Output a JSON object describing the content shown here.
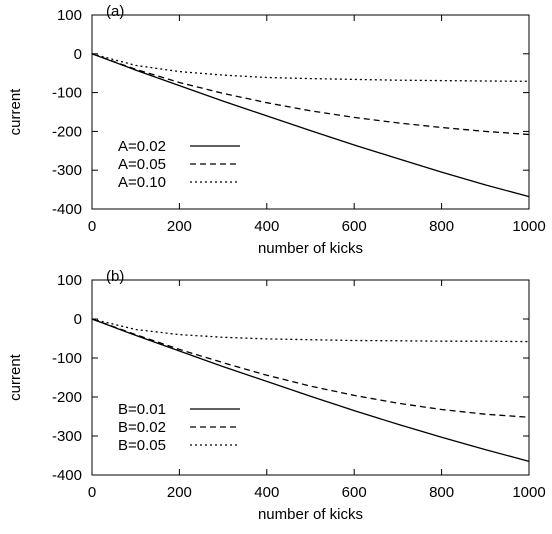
{
  "chart_data": [
    {
      "type": "line",
      "panel_label": "(a)",
      "xlabel": "number of kicks",
      "ylabel": "current",
      "xlim": [
        0,
        1000
      ],
      "ylim": [
        -400,
        100
      ],
      "xticks": [
        0,
        200,
        400,
        600,
        800,
        1000
      ],
      "yticks": [
        100,
        0,
        -100,
        -200,
        -300,
        -400
      ],
      "tick_labels_x": [
        "0",
        "200",
        "400",
        "600",
        "800",
        "1000"
      ],
      "tick_labels_y": [
        "100",
        "0",
        "-100",
        "-200",
        "-300",
        "-400"
      ],
      "legend_position": "bottom-left",
      "grid": false,
      "series": [
        {
          "name": "A=0.02",
          "style": "solid",
          "x": [
            0,
            100,
            200,
            300,
            400,
            500,
            600,
            700,
            800,
            900,
            1000
          ],
          "y": [
            0,
            -42,
            -82,
            -122,
            -160,
            -198,
            -235,
            -270,
            -305,
            -338,
            -368
          ]
        },
        {
          "name": "A=0.05",
          "style": "dashed",
          "x": [
            0,
            100,
            200,
            300,
            400,
            500,
            600,
            700,
            800,
            900,
            1000
          ],
          "y": [
            0,
            -40,
            -74,
            -102,
            -126,
            -147,
            -164,
            -178,
            -190,
            -200,
            -208
          ]
        },
        {
          "name": "A=0.10",
          "style": "dotted",
          "x": [
            0,
            100,
            200,
            300,
            400,
            500,
            600,
            700,
            800,
            900,
            1000
          ],
          "y": [
            0,
            -30,
            -46,
            -55,
            -61,
            -64,
            -66,
            -68,
            -69,
            -70,
            -71
          ]
        }
      ]
    },
    {
      "type": "line",
      "panel_label": "(b)",
      "xlabel": "number of kicks",
      "ylabel": "current",
      "xlim": [
        0,
        1000
      ],
      "ylim": [
        -400,
        100
      ],
      "xticks": [
        0,
        200,
        400,
        600,
        800,
        1000
      ],
      "yticks": [
        100,
        0,
        -100,
        -200,
        -300,
        -400
      ],
      "tick_labels_x": [
        "0",
        "200",
        "400",
        "600",
        "800",
        "1000"
      ],
      "tick_labels_y": [
        "100",
        "0",
        "-100",
        "-200",
        "-300",
        "-400"
      ],
      "legend_position": "bottom-left",
      "grid": false,
      "series": [
        {
          "name": "B=0.01",
          "style": "solid",
          "x": [
            0,
            100,
            200,
            300,
            400,
            500,
            600,
            700,
            800,
            900,
            1000
          ],
          "y": [
            0,
            -42,
            -82,
            -122,
            -160,
            -198,
            -235,
            -270,
            -303,
            -335,
            -365
          ]
        },
        {
          "name": "B=0.02",
          "style": "dashed",
          "x": [
            0,
            100,
            200,
            300,
            400,
            500,
            600,
            700,
            800,
            900,
            1000
          ],
          "y": [
            0,
            -40,
            -78,
            -112,
            -144,
            -172,
            -196,
            -216,
            -232,
            -244,
            -252
          ]
        },
        {
          "name": "B=0.05",
          "style": "dotted",
          "x": [
            0,
            100,
            200,
            300,
            400,
            500,
            600,
            700,
            800,
            900,
            1000
          ],
          "y": [
            0,
            -27,
            -40,
            -47,
            -51,
            -53,
            -55,
            -56,
            -57,
            -57,
            -58
          ]
        }
      ]
    }
  ]
}
